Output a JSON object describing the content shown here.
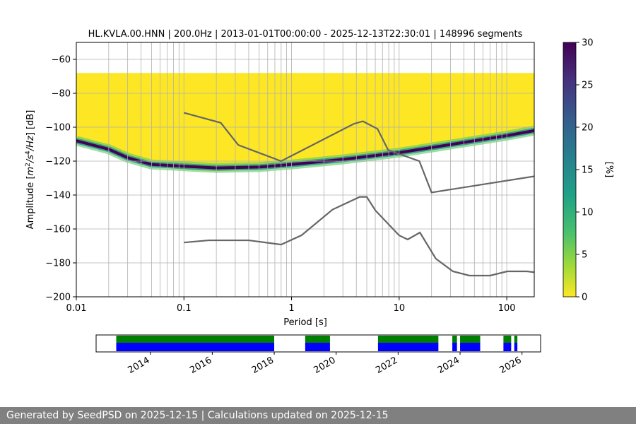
{
  "chart_data": [
    {
      "type": "heatmap",
      "title": "HL.KVLA.00.HNN | 200.0Hz | 2013-01-01T00:00:00 - 2025-12-13T22:30:01 | 148996 segments",
      "xlabel": "Period [s]",
      "ylabel": "Amplitude [m²/s⁴/Hz] [dB]",
      "xscale": "log",
      "xlim": [
        0.01,
        180
      ],
      "ylim": [
        -200,
        -50
      ],
      "xticks": [
        {
          "value": 0.01,
          "label": "0.01"
        },
        {
          "value": 0.1,
          "label": "0.1"
        },
        {
          "value": 1,
          "label": "1"
        },
        {
          "value": 10,
          "label": "10"
        },
        {
          "value": 100,
          "label": "100"
        }
      ],
      "yticks": [
        -60,
        -80,
        -100,
        -120,
        -140,
        -160,
        -180,
        -200
      ],
      "grid": true,
      "colorbar": {
        "label": "[%]",
        "range": [
          0,
          30
        ],
        "ticks": [
          0,
          5,
          10,
          15,
          20,
          25,
          30
        ],
        "colormap": "viridis_r"
      },
      "psd_envelope": {
        "lower": [
          [
            0.01,
            -68
          ],
          [
            0.02,
            -68
          ],
          [
            0.1,
            -68
          ],
          [
            1,
            -68
          ],
          [
            10,
            -68
          ],
          [
            100,
            -68
          ],
          [
            180,
            -68
          ]
        ],
        "upper": [
          [
            0.01,
            -107
          ],
          [
            0.02,
            -112
          ],
          [
            0.04,
            -122
          ],
          [
            0.1,
            -125
          ],
          [
            0.2,
            -126
          ],
          [
            0.5,
            -125
          ],
          [
            1,
            -123
          ],
          [
            3,
            -120
          ],
          [
            10,
            -114
          ],
          [
            30,
            -109
          ],
          [
            100,
            -104
          ],
          [
            180,
            -100
          ]
        ]
      },
      "mode_curve": [
        [
          0.01,
          -108
        ],
        [
          0.02,
          -113
        ],
        [
          0.03,
          -118
        ],
        [
          0.05,
          -122
        ],
        [
          0.1,
          -123
        ],
        [
          0.2,
          -124
        ],
        [
          0.5,
          -123.5
        ],
        [
          1,
          -122
        ],
        [
          3,
          -119
        ],
        [
          10,
          -115
        ],
        [
          20,
          -112
        ],
        [
          50,
          -108
        ],
        [
          100,
          -105
        ],
        [
          180,
          -102
        ]
      ],
      "high_noise_model": [
        [
          0.1,
          -91.5
        ],
        [
          0.22,
          -97.4
        ],
        [
          0.32,
          -110.5
        ],
        [
          0.8,
          -120
        ],
        [
          3.8,
          -98
        ],
        [
          4.6,
          -96.5
        ],
        [
          6.3,
          -101
        ],
        [
          7.9,
          -113.5
        ],
        [
          15.4,
          -120
        ],
        [
          20,
          -138.5
        ],
        [
          354.8,
          -126
        ]
      ],
      "low_noise_model": [
        [
          0.1,
          -168
        ],
        [
          0.17,
          -166.7
        ],
        [
          0.4,
          -166.7
        ],
        [
          0.8,
          -169.2
        ],
        [
          1.24,
          -163.7
        ],
        [
          2.4,
          -148.6
        ],
        [
          4.3,
          -141.1
        ],
        [
          5,
          -141.1
        ],
        [
          6,
          -149
        ],
        [
          10,
          -163.8
        ],
        [
          12,
          -166.2
        ],
        [
          15.6,
          -162.1
        ],
        [
          21.9,
          -177.5
        ],
        [
          31.6,
          -185
        ],
        [
          45,
          -187.5
        ],
        [
          70,
          -187.5
        ],
        [
          101,
          -185
        ],
        [
          154,
          -185
        ],
        [
          328,
          -187.5
        ]
      ]
    },
    {
      "type": "bar",
      "title": "",
      "xlabel": "",
      "ylabel": "",
      "xticks": [
        "2014",
        "2016",
        "2018",
        "2020",
        "2022",
        "2024",
        "2026"
      ],
      "xlim": [
        2012.25,
        2026.6
      ],
      "series": [
        {
          "color": "#008000",
          "intervals": [
            [
              2012.9,
              2018.0
            ],
            [
              2019.0,
              2019.8
            ],
            [
              2021.35,
              2023.3
            ],
            [
              2023.75,
              2023.9
            ],
            [
              2024.0,
              2024.65
            ],
            [
              2025.4,
              2025.65
            ],
            [
              2025.75,
              2025.85
            ]
          ]
        },
        {
          "color": "#0000ff",
          "intervals": [
            [
              2012.9,
              2018.0
            ],
            [
              2019.0,
              2019.8
            ],
            [
              2021.35,
              2023.3
            ],
            [
              2023.75,
              2023.9
            ],
            [
              2024.0,
              2024.65
            ],
            [
              2025.4,
              2025.65
            ],
            [
              2025.75,
              2025.85
            ]
          ]
        }
      ]
    }
  ],
  "footer": {
    "text": "Generated by SeedPSD on 2025-12-15 | Calculations updated on 2025-12-15"
  },
  "colors": {
    "footer_bg": "#808080",
    "noise_model": "#666666",
    "availability_green": "#008000",
    "availability_blue": "#0000ff"
  }
}
